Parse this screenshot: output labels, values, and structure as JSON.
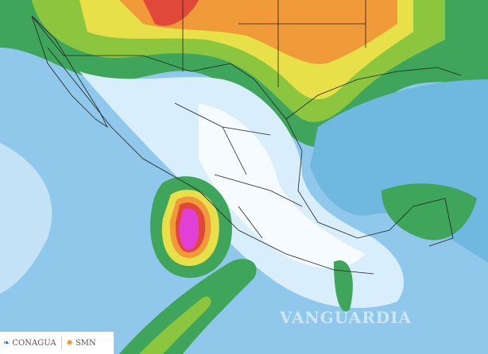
{
  "logos": {
    "left": "CONAGUA",
    "right": "SMN"
  },
  "watermark": "VANGUARDIA",
  "colors": {
    "ocean": "#8fc8ea",
    "light": "#d8eefa",
    "green": "#3fa55a",
    "lightgreen": "#8cc63f",
    "yellow": "#e8e048",
    "orange": "#f19a3a",
    "red": "#e0483a",
    "magenta": "#e040d8"
  }
}
